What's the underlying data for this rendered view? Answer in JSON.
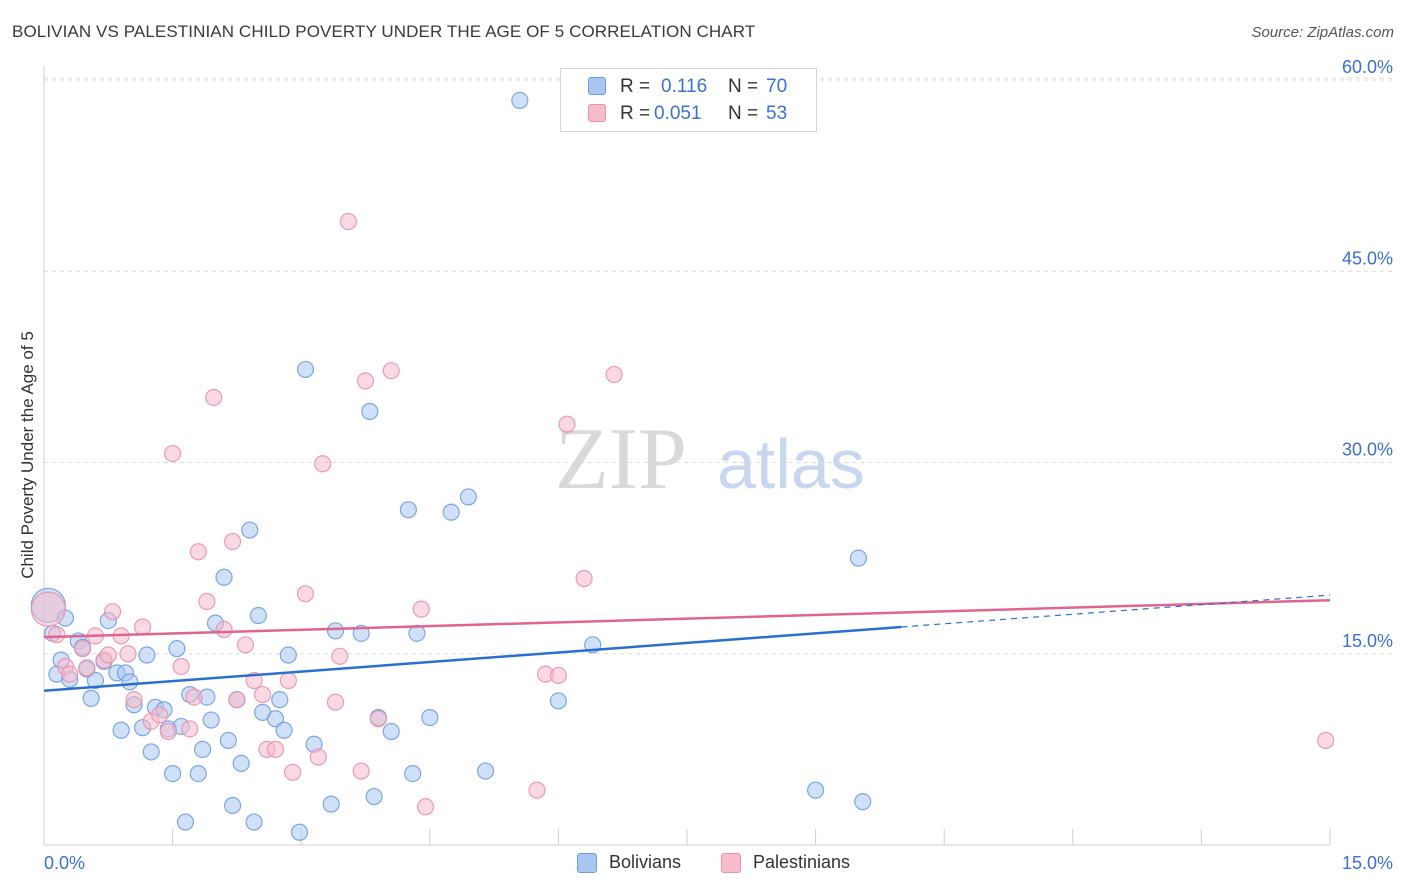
{
  "title": "BOLIVIAN VS PALESTINIAN CHILD POVERTY UNDER THE AGE OF 5 CORRELATION CHART",
  "source": "Source: ZipAtlas.com",
  "watermark": {
    "zip": "ZIP",
    "atlas": "atlas"
  },
  "colors": {
    "bolivians_fill": "#a9c6f0",
    "bolivians_stroke": "#6e9ee0",
    "bolivians_line": "#2a6fd0",
    "palestinians_fill": "#f6bccb",
    "palestinians_stroke": "#e991ad",
    "palestinians_line": "#e0648e",
    "tick_label": "#3a6fd8"
  },
  "legend": {
    "row1": {
      "r_label": "R =",
      "r_value": "0.116",
      "n_label": "N =",
      "n_value": "70"
    },
    "row2": {
      "r_label": "R =",
      "r_value": "0.051",
      "n_label": "N =",
      "n_value": "53"
    }
  },
  "bottom_legend": {
    "bolivians": "Bolivians",
    "palestinians": "Palestinians"
  },
  "chart_data": {
    "type": "scatter",
    "title": "BOLIVIAN VS PALESTINIAN CHILD POVERTY UNDER THE AGE OF 5 CORRELATION CHART",
    "xlabel": "",
    "ylabel": "Child Poverty Under the Age of 5",
    "xlim": [
      0,
      15
    ],
    "ylim": [
      0,
      60
    ],
    "x_tick_labels": [
      "0.0%",
      "15.0%"
    ],
    "y_ticks": [
      {
        "value": 15,
        "label": "15.0%"
      },
      {
        "value": 30,
        "label": "30.0%"
      },
      {
        "value": 45,
        "label": "45.0%"
      },
      {
        "value": 60,
        "label": "60.0%"
      }
    ],
    "grid": true,
    "series": [
      {
        "name": "Bolivians",
        "r": 0.116,
        "n": 70,
        "trend": {
          "x0": 0,
          "y0": 12.1,
          "x1": 10.0,
          "y1": 17.1,
          "dash_x1": 15.0,
          "dash_y1": 19.6
        },
        "points": [
          [
            0.05,
            18.8
          ],
          [
            0.1,
            16.6
          ],
          [
            0.25,
            17.8
          ],
          [
            0.15,
            13.4
          ],
          [
            0.2,
            14.5
          ],
          [
            0.3,
            13.0
          ],
          [
            0.4,
            16.0
          ],
          [
            0.45,
            15.5
          ],
          [
            0.5,
            13.8
          ],
          [
            0.55,
            11.5
          ],
          [
            0.6,
            12.9
          ],
          [
            0.7,
            14.4
          ],
          [
            0.75,
            17.6
          ],
          [
            0.85,
            13.5
          ],
          [
            0.95,
            13.5
          ],
          [
            1.0,
            12.8
          ],
          [
            0.9,
            9.0
          ],
          [
            1.05,
            11.0
          ],
          [
            1.15,
            9.2
          ],
          [
            1.2,
            14.9
          ],
          [
            1.25,
            7.3
          ],
          [
            1.3,
            10.8
          ],
          [
            1.4,
            10.6
          ],
          [
            1.45,
            9.1
          ],
          [
            1.5,
            5.6
          ],
          [
            1.55,
            15.4
          ],
          [
            1.6,
            9.3
          ],
          [
            1.65,
            1.8
          ],
          [
            1.7,
            11.8
          ],
          [
            1.8,
            5.6
          ],
          [
            1.85,
            7.5
          ],
          [
            1.9,
            11.6
          ],
          [
            1.95,
            9.8
          ],
          [
            2.0,
            17.4
          ],
          [
            2.1,
            21.0
          ],
          [
            2.15,
            8.2
          ],
          [
            2.2,
            3.1
          ],
          [
            2.25,
            11.4
          ],
          [
            2.3,
            6.4
          ],
          [
            2.4,
            24.7
          ],
          [
            2.45,
            1.8
          ],
          [
            2.5,
            18.0
          ],
          [
            2.55,
            10.4
          ],
          [
            2.7,
            9.9
          ],
          [
            2.75,
            11.4
          ],
          [
            2.8,
            9.0
          ],
          [
            2.85,
            14.9
          ],
          [
            2.98,
            1.0
          ],
          [
            3.05,
            37.3
          ],
          [
            3.15,
            7.9
          ],
          [
            3.35,
            3.2
          ],
          [
            3.4,
            16.8
          ],
          [
            3.7,
            16.6
          ],
          [
            3.8,
            34.0
          ],
          [
            3.85,
            3.8
          ],
          [
            3.9,
            10.0
          ],
          [
            4.05,
            8.9
          ],
          [
            4.25,
            26.3
          ],
          [
            4.3,
            5.6
          ],
          [
            4.35,
            16.6
          ],
          [
            4.5,
            10.0
          ],
          [
            4.75,
            26.1
          ],
          [
            4.95,
            27.3
          ],
          [
            5.15,
            5.8
          ],
          [
            5.55,
            58.4
          ],
          [
            6.0,
            11.3
          ],
          [
            6.4,
            15.7
          ],
          [
            9.0,
            4.3
          ],
          [
            9.5,
            22.5
          ],
          [
            9.55,
            3.4
          ]
        ]
      },
      {
        "name": "Palestinians",
        "r": 0.051,
        "n": 53,
        "trend": {
          "x0": 0,
          "y0": 16.3,
          "x1": 15.0,
          "y1": 19.2
        },
        "points": [
          [
            0.05,
            18.5
          ],
          [
            0.15,
            16.5
          ],
          [
            0.25,
            14.0
          ],
          [
            0.3,
            13.4
          ],
          [
            0.45,
            15.4
          ],
          [
            0.5,
            13.9
          ],
          [
            0.6,
            16.4
          ],
          [
            0.7,
            14.5
          ],
          [
            0.75,
            14.9
          ],
          [
            0.8,
            18.3
          ],
          [
            0.9,
            16.4
          ],
          [
            0.98,
            15.0
          ],
          [
            1.05,
            11.4
          ],
          [
            1.15,
            17.1
          ],
          [
            1.25,
            9.7
          ],
          [
            1.35,
            10.2
          ],
          [
            1.45,
            8.9
          ],
          [
            1.5,
            30.7
          ],
          [
            1.6,
            14.0
          ],
          [
            1.7,
            9.1
          ],
          [
            1.75,
            11.6
          ],
          [
            1.8,
            23.0
          ],
          [
            1.9,
            19.1
          ],
          [
            1.98,
            35.1
          ],
          [
            2.1,
            16.9
          ],
          [
            2.2,
            23.8
          ],
          [
            2.25,
            11.4
          ],
          [
            2.35,
            15.7
          ],
          [
            2.45,
            12.9
          ],
          [
            2.55,
            11.8
          ],
          [
            2.6,
            7.5
          ],
          [
            2.7,
            7.5
          ],
          [
            2.85,
            12.9
          ],
          [
            2.9,
            5.7
          ],
          [
            3.05,
            19.7
          ],
          [
            3.2,
            6.9
          ],
          [
            3.25,
            29.9
          ],
          [
            3.4,
            11.2
          ],
          [
            3.45,
            14.8
          ],
          [
            3.55,
            48.9
          ],
          [
            3.7,
            5.8
          ],
          [
            3.75,
            36.4
          ],
          [
            3.9,
            9.9
          ],
          [
            4.05,
            37.2
          ],
          [
            4.4,
            18.5
          ],
          [
            4.45,
            3.0
          ],
          [
            5.75,
            4.3
          ],
          [
            5.85,
            13.4
          ],
          [
            6.0,
            13.3
          ],
          [
            6.1,
            33.0
          ],
          [
            6.3,
            20.9
          ],
          [
            6.65,
            36.9
          ],
          [
            14.95,
            8.2
          ]
        ]
      }
    ]
  }
}
